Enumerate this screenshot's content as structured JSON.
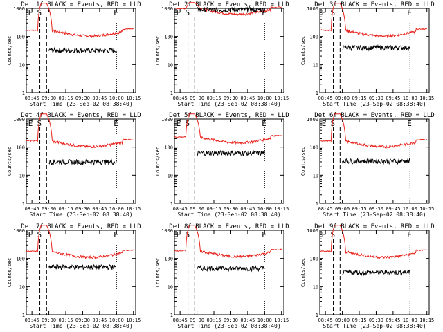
{
  "chart_data": [
    {
      "type": "line",
      "title": "Det 1f BLACK = Events, RED = LLD",
      "xlabel": "Start Time (23-Sep-02 08:38:40)",
      "ylabel": "Counts/sec",
      "x_ticks": [
        "08:45",
        "09:00",
        "09:15",
        "09:30",
        "09:45",
        "10:00",
        "10:15"
      ],
      "y_ticks": [
        "1000",
        "100",
        "10",
        "1"
      ],
      "ylog": true,
      "ylim": [
        1,
        1000
      ],
      "markers": [
        "E",
        "S",
        "E"
      ],
      "series": [
        {
          "name": "LLD",
          "color": "#e8231c",
          "start": "08:40",
          "end": "10:15",
          "baseline": 160,
          "peak": 1500,
          "black_end": "10:00"
        },
        {
          "name": "Events",
          "color": "#000000",
          "start": "09:00",
          "end": "10:00",
          "baseline": 32
        }
      ]
    },
    {
      "type": "line",
      "title": "Det 2f BLACK = Events, RED = LLD",
      "xlabel": "Start Time (23-Sep-02 08:38:40)",
      "ylabel": "Counts/sec",
      "x_ticks": [
        "08:45",
        "09:00",
        "09:15",
        "09:30",
        "09:45",
        "10:00",
        "10:15"
      ],
      "y_ticks": [
        "1000",
        "100",
        "10",
        "1"
      ],
      "ylog": true,
      "ylim": [
        1,
        1000
      ],
      "markers": [
        "E",
        "S",
        "E"
      ],
      "series": [
        {
          "name": "LLD",
          "color": "#e8231c",
          "start": "08:40",
          "end": "10:15",
          "baseline": 950,
          "peak": 1600,
          "black_end": "10:00"
        },
        {
          "name": "Events",
          "color": "#000000",
          "start": "09:00",
          "end": "10:00",
          "baseline": 900
        }
      ]
    },
    {
      "type": "line",
      "title": "Det 3f BLACK = Events, RED = LLD",
      "xlabel": "Start Time (23-Sep-02 08:38:40)",
      "ylabel": "Counts/sec",
      "x_ticks": [
        "08:45",
        "09:00",
        "09:15",
        "09:30",
        "09:45",
        "10:00",
        "10:15"
      ],
      "y_ticks": [
        "1000",
        "100",
        "10",
        "1"
      ],
      "ylog": true,
      "ylim": [
        1,
        1000
      ],
      "markers": [
        "E",
        "S",
        "E"
      ],
      "series": [
        {
          "name": "LLD",
          "color": "#e8231c",
          "start": "08:40",
          "end": "10:15",
          "baseline": 160,
          "peak": 1500,
          "black_end": "10:00"
        },
        {
          "name": "Events",
          "color": "#000000",
          "start": "09:00",
          "end": "10:00",
          "baseline": 40
        }
      ]
    },
    {
      "type": "line",
      "title": "Det 4f BLACK = Events, RED = LLD",
      "xlabel": "Start Time (23-Sep-02 08:38:40)",
      "ylabel": "Counts/sec",
      "x_ticks": [
        "08:45",
        "09:00",
        "09:15",
        "09:30",
        "09:45",
        "10:00",
        "10:15"
      ],
      "y_ticks": [
        "1000",
        "100",
        "10",
        "1"
      ],
      "ylog": true,
      "ylim": [
        1,
        1000
      ],
      "markers": [
        "E",
        "S",
        "E"
      ],
      "series": [
        {
          "name": "LLD",
          "color": "#e8231c",
          "start": "08:40",
          "end": "10:15",
          "baseline": 160,
          "peak": 1500,
          "black_end": "10:00"
        },
        {
          "name": "Events",
          "color": "#000000",
          "start": "09:00",
          "end": "10:00",
          "baseline": 30
        }
      ]
    },
    {
      "type": "line",
      "title": "Det 5f BLACK = Events, RED = LLD",
      "xlabel": "Start Time (23-Sep-02 08:38:40)",
      "ylabel": "Counts/sec",
      "x_ticks": [
        "08:45",
        "09:00",
        "09:15",
        "09:30",
        "09:45",
        "10:00",
        "10:15"
      ],
      "y_ticks": [
        "1000",
        "100",
        "10",
        "1"
      ],
      "ylog": true,
      "ylim": [
        1,
        1000
      ],
      "markers": [
        "E",
        "S",
        "E"
      ],
      "series": [
        {
          "name": "LLD",
          "color": "#e8231c",
          "start": "08:40",
          "end": "10:15",
          "baseline": 220,
          "peak": 1500,
          "black_end": "10:00"
        },
        {
          "name": "Events",
          "color": "#000000",
          "start": "09:00",
          "end": "10:00",
          "baseline": 62
        }
      ]
    },
    {
      "type": "line",
      "title": "Det 6f BLACK = Events, RED = LLD",
      "xlabel": "Start Time (23-Sep-02 08:38:40)",
      "ylabel": "Counts/sec",
      "x_ticks": [
        "08:45",
        "09:00",
        "09:15",
        "09:30",
        "09:45",
        "10:00",
        "10:15"
      ],
      "y_ticks": [
        "1000",
        "100",
        "10",
        "1"
      ],
      "ylog": true,
      "ylim": [
        1,
        1000
      ],
      "markers": [
        "E",
        "S",
        "E"
      ],
      "series": [
        {
          "name": "LLD",
          "color": "#e8231c",
          "start": "08:40",
          "end": "10:15",
          "baseline": 160,
          "peak": 1500,
          "black_end": "10:00"
        },
        {
          "name": "Events",
          "color": "#000000",
          "start": "09:00",
          "end": "10:00",
          "baseline": 32
        }
      ]
    },
    {
      "type": "line",
      "title": "Det 7f BLACK = Events, RED = LLD",
      "xlabel": "Start Time (23-Sep-02 08:38:40)",
      "ylabel": "Counts/sec",
      "x_ticks": [
        "08:45",
        "09:00",
        "09:15",
        "09:30",
        "09:45",
        "10:00",
        "10:15"
      ],
      "y_ticks": [
        "1000",
        "100",
        "10",
        "1"
      ],
      "ylog": true,
      "ylim": [
        1,
        1000
      ],
      "markers": [
        "E",
        "S",
        "E"
      ],
      "series": [
        {
          "name": "LLD",
          "color": "#e8231c",
          "start": "08:40",
          "end": "10:15",
          "baseline": 170,
          "peak": 1500,
          "black_end": "10:00"
        },
        {
          "name": "Events",
          "color": "#000000",
          "start": "09:00",
          "end": "10:00",
          "baseline": 50
        }
      ]
    },
    {
      "type": "line",
      "title": "Det 8f BLACK = Events, RED = LLD",
      "xlabel": "Start Time (23-Sep-02 08:38:40)",
      "ylabel": "Counts/sec",
      "x_ticks": [
        "08:45",
        "09:00",
        "09:15",
        "09:30",
        "09:45",
        "10:00",
        "10:15"
      ],
      "y_ticks": [
        "1000",
        "100",
        "10",
        "1"
      ],
      "ylog": true,
      "ylim": [
        1,
        1000
      ],
      "markers": [
        "E",
        "S",
        "E"
      ],
      "series": [
        {
          "name": "LLD",
          "color": "#e8231c",
          "start": "08:40",
          "end": "10:15",
          "baseline": 180,
          "peak": 1500,
          "black_end": "10:00"
        },
        {
          "name": "Events",
          "color": "#000000",
          "start": "09:00",
          "end": "10:00",
          "baseline": 45
        }
      ]
    },
    {
      "type": "line",
      "title": "Det 9f BLACK = Events, RED = LLD",
      "xlabel": "Start Time (23-Sep-02 08:38:40)",
      "ylabel": "Counts/sec",
      "x_ticks": [
        "08:45",
        "09:00",
        "09:15",
        "09:30",
        "09:45",
        "10:00",
        "10:15"
      ],
      "y_ticks": [
        "1000",
        "100",
        "10",
        "1"
      ],
      "ylog": true,
      "ylim": [
        1,
        1000
      ],
      "markers": [
        "E",
        "S",
        "E"
      ],
      "series": [
        {
          "name": "LLD",
          "color": "#e8231c",
          "start": "08:40",
          "end": "10:15",
          "baseline": 170,
          "peak": 1500,
          "black_end": "10:00"
        },
        {
          "name": "Events",
          "color": "#000000",
          "start": "09:00",
          "end": "10:00",
          "baseline": 32
        }
      ]
    }
  ]
}
